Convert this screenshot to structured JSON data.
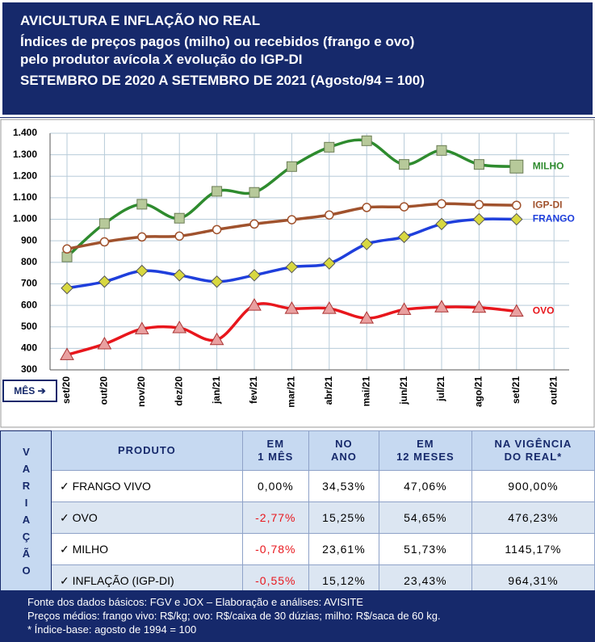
{
  "chart_data": {
    "type": "line",
    "title": "AVICULTURA E INFLAÇÃO NO REAL",
    "subtitle": [
      "Índices de preços pagos (milho) ou recebidos (frango e ovo)",
      "pelo produtor avícola",
      "X",
      "evolução do IGP-DI"
    ],
    "period": "SETEMBRO DE 2020 A SETEMBRO DE 2021 (Agosto/94 = 100)",
    "x_label": "MÊS ➔",
    "categories": [
      "set/20",
      "out/20",
      "nov/20",
      "dez/20",
      "jan/21",
      "fev/21",
      "mar/21",
      "abr/21",
      "mai/21",
      "jun/21",
      "jul/21",
      "ago/21",
      "set/21",
      "out/21"
    ],
    "series": [
      {
        "name": "MILHO",
        "color": "#2e8b2e",
        "marker": "square",
        "values": [
          825,
          980,
          1070,
          1005,
          1130,
          1125,
          1245,
          1335,
          1365,
          1255,
          1320,
          1255,
          1245,
          null
        ]
      },
      {
        "name": "IGP-DI",
        "color": "#a0522d",
        "marker": "circle",
        "values": [
          862,
          895,
          918,
          922,
          952,
          978,
          998,
          1020,
          1055,
          1058,
          1072,
          1068,
          1065,
          null
        ]
      },
      {
        "name": "FRANGO",
        "color": "#1f3fdc",
        "marker": "diamond",
        "values": [
          680,
          710,
          760,
          740,
          710,
          740,
          778,
          795,
          885,
          918,
          978,
          1000,
          1000,
          null
        ]
      },
      {
        "name": "OVO",
        "color": "#e8161c",
        "marker": "triangle",
        "values": [
          370,
          420,
          490,
          495,
          440,
          600,
          585,
          585,
          540,
          580,
          592,
          590,
          572,
          null
        ]
      }
    ],
    "ylim": [
      300,
      1400
    ],
    "yticks": [
      300,
      400,
      500,
      600,
      700,
      800,
      900,
      {
        "value": 1000,
        "label": "1.000"
      },
      {
        "value": 1100,
        "label": "1.100"
      },
      {
        "value": 1200,
        "label": "1.200"
      },
      {
        "value": 1300,
        "label": "1.300"
      },
      {
        "value": 1400,
        "label": "1.400"
      }
    ],
    "grid": true
  },
  "table": {
    "side_label": "VARIAÇÃO",
    "header": [
      [
        "PRODUTO"
      ],
      [
        "EM",
        "1 MÊS"
      ],
      [
        "NO",
        "ANO"
      ],
      [
        "EM",
        "12 MESES"
      ],
      [
        "NA VIGÊNCIA",
        "DO REAL*"
      ]
    ],
    "rows": [
      [
        "FRANGO VIVO",
        "0,00%",
        "34,53%",
        "47,06%",
        "900,00%"
      ],
      [
        "OVO",
        "-2,77%",
        "15,25%",
        "54,65%",
        "476,23%"
      ],
      [
        "MILHO",
        "-0,78%",
        "23,61%",
        "51,73%",
        "1145,17%"
      ],
      [
        "INFLAÇÃO (IGP-DI)",
        "-0,55%",
        "15,12%",
        "23,43%",
        "964,31%"
      ]
    ]
  },
  "footer": [
    "Fonte dos dados básicos: FGV e JOX – Elaboração e análises: AVISITE",
    "Preços médios: frango vivo: R$/kg; ovo: R$/caixa de 30 dúzias; milho: R$/saca de 60 kg.",
    "* Índice-base: agosto de 1994 = 100"
  ]
}
